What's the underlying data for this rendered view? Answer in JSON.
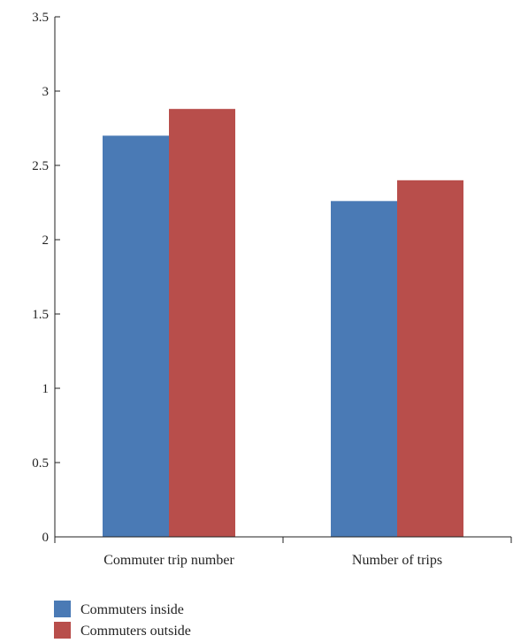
{
  "chart_data": {
    "type": "bar",
    "categories": [
      "Commuter trip number",
      "Number of trips"
    ],
    "series": [
      {
        "name": "Commuters inside",
        "color": "#4a7ab5",
        "values": [
          2.7,
          2.26
        ]
      },
      {
        "name": "Commuters outside",
        "color": "#b84e4b",
        "values": [
          2.88,
          2.4
        ]
      }
    ],
    "yticks": [
      "0",
      "0.5",
      "1",
      "1.5",
      "2",
      "2.5",
      "3",
      "3.5"
    ],
    "ylim": [
      0,
      3.5
    ],
    "grid": false,
    "legend_position": "bottom-left"
  }
}
